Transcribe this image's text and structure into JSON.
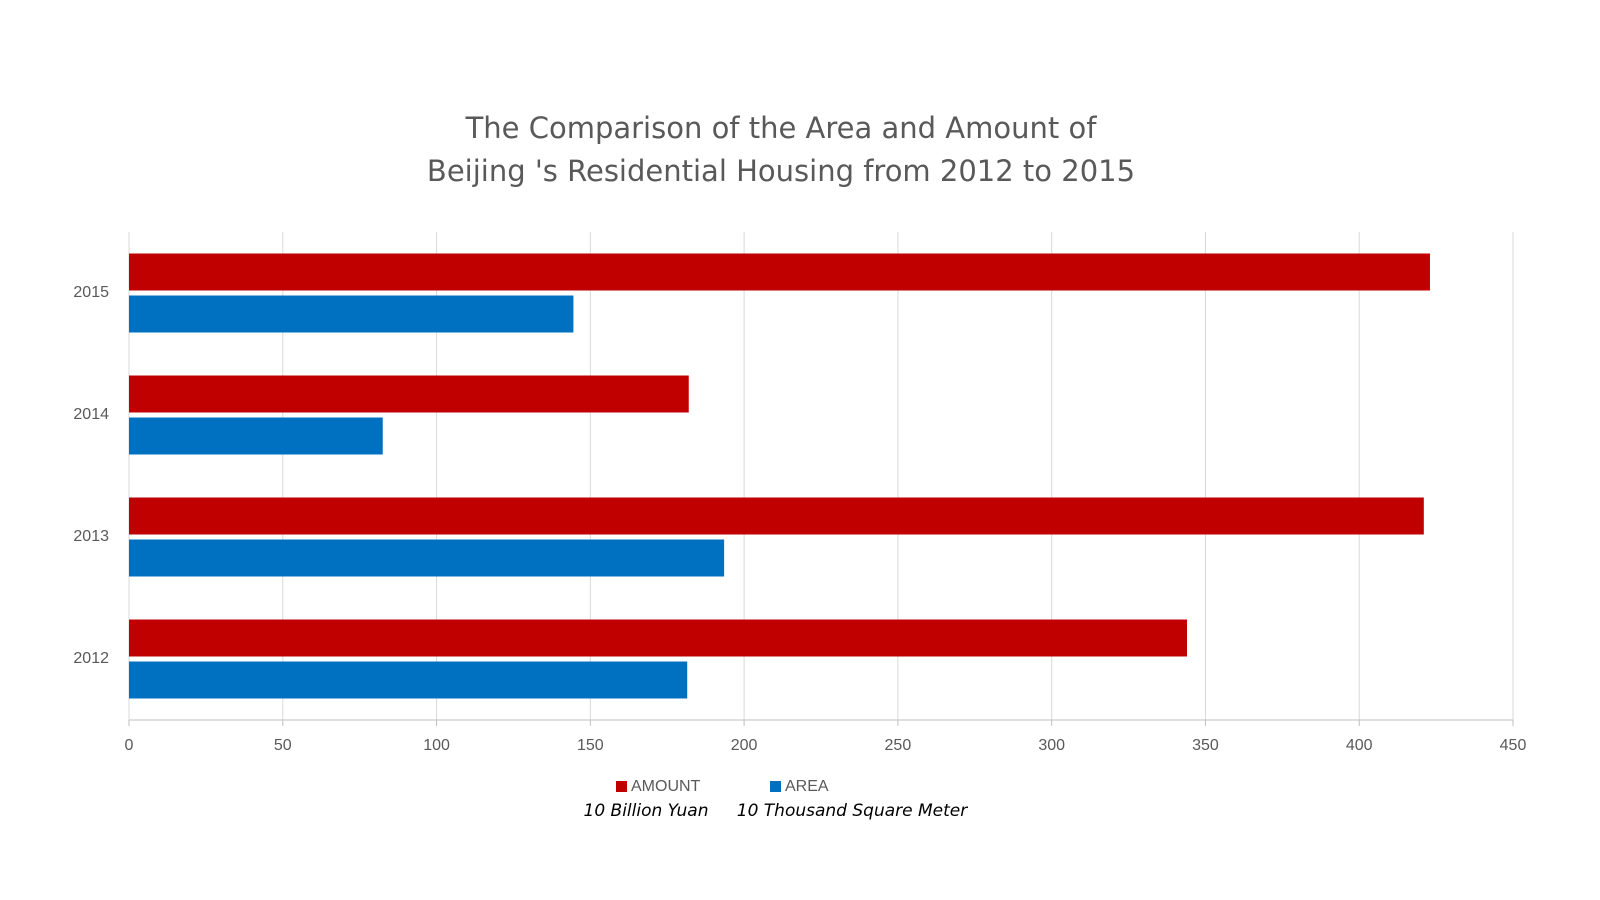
{
  "chart_data": {
    "type": "bar",
    "orientation": "horizontal",
    "title_lines": [
      "The Comparison of the Area and Amount of",
      "Beijing 's Residential Housing from 2012 to 2015"
    ],
    "categories": [
      "2012",
      "2013",
      "2014",
      "2015"
    ],
    "series": [
      {
        "name": "AMOUNT",
        "color": "#c00000",
        "values": [
          344,
          421,
          182,
          423
        ]
      },
      {
        "name": "AREA",
        "color": "#0070c0",
        "values": [
          181.5,
          193.5,
          82.5,
          144.5
        ]
      }
    ],
    "annotations": [
      "10 Billion Yuan",
      "10 Thousand Square Meter"
    ],
    "xlim": [
      0,
      450
    ],
    "xticks": [
      0,
      50,
      100,
      150,
      200,
      250,
      300,
      350,
      400,
      450
    ],
    "grid": true,
    "legend": "bottom"
  }
}
